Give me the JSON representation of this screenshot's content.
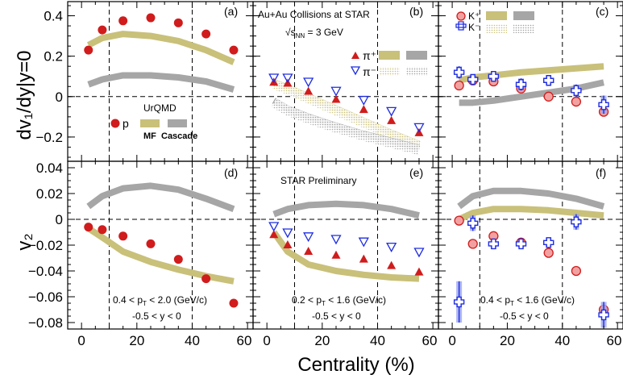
{
  "figure": {
    "xlabel": "Centrality (%)",
    "ylabel_top": "dv₁/dy|y=0",
    "ylabel_bottom": "v₂",
    "x_ticks": [
      "0",
      "20",
      "40",
      "60"
    ],
    "y_ticks_top": [
      "0.4",
      "0.2",
      "0",
      "−0.2"
    ],
    "y_ticks_bottom": [
      "0.04",
      "0.02",
      "0",
      "−0.02",
      "−0.04",
      "−0.06",
      "−0.08"
    ]
  },
  "panels_text": {
    "a_tag": "(a)",
    "b_tag": "(b)",
    "c_tag": "(c)",
    "d_tag": "(d)",
    "e_tag": "(e)",
    "f_tag": "(f)",
    "collision": "Au+Au Collisions at STAR",
    "energy_prefix": "√s",
    "energy_sub": "NN",
    "energy_suffix": " = 3 GeV",
    "urqmd": "UrQMD",
    "legend_p": "p",
    "legend_mf": "MF",
    "legend_cascade": "Cascade",
    "legend_piplus": "π⁺",
    "legend_piminus": "π⁻",
    "legend_kplus": "K⁺",
    "legend_kminus": "K⁻",
    "preliminary": "STAR Preliminary",
    "cut_d_1": "0.4 < p",
    "cut_d_1b": "T",
    "cut_d_1c": " < 2.0 (GeV/c)",
    "cut_d_2": "-0.5 < y < 0",
    "cut_e_1": "0.2 < p",
    "cut_e_1b": "T",
    "cut_e_1c": " < 1.6 (GeV/c)",
    "cut_e_2": "-0.5 < y < 0",
    "cut_f_1": "0.4 < p",
    "cut_f_1b": "T",
    "cut_f_1c": " < 1.6 (GeV/c)",
    "cut_f_2": "-0.5 < y < 0"
  },
  "colors": {
    "proton": "#d01c1c",
    "mf_band": "#c9c07a",
    "cascade_band": "#a6a6a6",
    "piminus": "#1f2de0",
    "kplus_fill": "#f2a1a1",
    "kminus": "#1f2de0"
  },
  "chart_data": [
    {
      "type": "scatter",
      "panel": "a",
      "xlim": [
        -5,
        62
      ],
      "ylim": [
        -0.32,
        0.47
      ],
      "series": [
        {
          "name": "p",
          "kind": "data",
          "marker": "filled-circle",
          "x": [
            2.5,
            7.5,
            15,
            25,
            35,
            45,
            55
          ],
          "y": [
            0.23,
            0.33,
            0.375,
            0.39,
            0.365,
            0.31,
            0.23
          ]
        },
        {
          "kind": "model-mf",
          "x": [
            2.5,
            7.5,
            15,
            25,
            35,
            45,
            55
          ],
          "y": [
            0.255,
            0.29,
            0.31,
            0.3,
            0.275,
            0.23,
            0.17
          ]
        },
        {
          "kind": "model-cascade",
          "x": [
            2.5,
            7.5,
            15,
            25,
            35,
            45,
            55
          ],
          "y": [
            0.06,
            0.085,
            0.105,
            0.105,
            0.095,
            0.075,
            0.035
          ]
        }
      ]
    },
    {
      "type": "scatter",
      "panel": "b",
      "xlim": [
        -5,
        62
      ],
      "ylim": [
        -0.32,
        0.47
      ],
      "series": [
        {
          "name": "π⁺",
          "kind": "data",
          "marker": "filled-triangle",
          "x": [
            2.5,
            7.5,
            15,
            25,
            35,
            45,
            55
          ],
          "y": [
            0.07,
            0.065,
            0.025,
            -0.015,
            -0.065,
            -0.12,
            -0.18
          ]
        },
        {
          "name": "π⁻",
          "kind": "data",
          "marker": "open-triangle-down",
          "x": [
            2.5,
            7.5,
            15,
            25,
            35,
            45,
            55
          ],
          "y": [
            0.095,
            0.095,
            0.075,
            0.03,
            -0.015,
            -0.07,
            -0.15
          ]
        },
        {
          "kind": "model-mf",
          "x": [
            2.5,
            7.5,
            15,
            25,
            35,
            45,
            55
          ],
          "y": [
            0.07,
            0.045,
            0.0,
            -0.06,
            -0.12,
            -0.18,
            -0.235
          ]
        },
        {
          "kind": "model-mf-hatched",
          "x": [
            2.5,
            7.5,
            15,
            25,
            35,
            45,
            55
          ],
          "y": [
            0.06,
            0.035,
            -0.01,
            -0.07,
            -0.13,
            -0.19,
            -0.245
          ]
        },
        {
          "kind": "model-cascade",
          "x": [
            2.5,
            7.5,
            15,
            25,
            35,
            45,
            55
          ],
          "y": [
            -0.02,
            -0.06,
            -0.1,
            -0.145,
            -0.185,
            -0.22,
            -0.255
          ]
        },
        {
          "kind": "model-cascade-hatched",
          "x": [
            2.5,
            7.5,
            15,
            25,
            35,
            45,
            55
          ],
          "y": [
            -0.03,
            -0.07,
            -0.11,
            -0.155,
            -0.195,
            -0.23,
            -0.265
          ]
        }
      ]
    },
    {
      "type": "scatter",
      "panel": "c",
      "xlim": [
        -5,
        62
      ],
      "ylim": [
        -0.32,
        0.47
      ],
      "series": [
        {
          "name": "K⁺",
          "kind": "data",
          "marker": "open-circle",
          "x": [
            2.5,
            7.5,
            15,
            25,
            35,
            45,
            55
          ],
          "y": [
            0.055,
            0.08,
            0.075,
            0.04,
            0.0,
            -0.025,
            -0.075
          ]
        },
        {
          "name": "K⁻",
          "kind": "data",
          "marker": "open-cross",
          "x": [
            2.5,
            7.5,
            15,
            25,
            35,
            45,
            55
          ],
          "y": [
            0.12,
            0.085,
            0.1,
            0.06,
            0.08,
            0.03,
            -0.04
          ],
          "yerr": [
            0.03,
            0.025,
            0.025,
            0.03,
            0.025,
            0.03,
            0.045
          ]
        },
        {
          "kind": "model-mf",
          "x": [
            2.5,
            7.5,
            15,
            25,
            35,
            45,
            55
          ],
          "y": [
            0.08,
            0.095,
            0.105,
            0.12,
            0.13,
            0.14,
            0.15
          ]
        },
        {
          "kind": "model-cascade",
          "x": [
            2.5,
            7.5,
            15,
            25,
            35,
            45,
            55
          ],
          "y": [
            -0.03,
            -0.03,
            -0.02,
            0.0,
            0.02,
            0.04,
            0.07
          ]
        }
      ]
    },
    {
      "type": "scatter",
      "panel": "d",
      "xlim": [
        -5,
        62
      ],
      "ylim": [
        -0.085,
        0.045
      ],
      "series": [
        {
          "name": "p",
          "kind": "data",
          "marker": "filled-circle",
          "x": [
            2.5,
            7.5,
            15,
            25,
            35,
            45,
            55
          ],
          "y": [
            -0.006,
            -0.008,
            -0.013,
            -0.019,
            -0.031,
            -0.046,
            -0.065
          ]
        },
        {
          "kind": "model-mf",
          "x": [
            2.5,
            7.5,
            15,
            25,
            35,
            45,
            55
          ],
          "y": [
            -0.007,
            -0.014,
            -0.025,
            -0.033,
            -0.039,
            -0.044,
            -0.048
          ]
        },
        {
          "kind": "model-cascade",
          "x": [
            2.5,
            7.5,
            15,
            25,
            35,
            45,
            55
          ],
          "y": [
            0.01,
            0.018,
            0.024,
            0.026,
            0.023,
            0.016,
            0.008
          ]
        }
      ]
    },
    {
      "type": "scatter",
      "panel": "e",
      "xlim": [
        -5,
        62
      ],
      "ylim": [
        -0.085,
        0.045
      ],
      "series": [
        {
          "name": "π⁺",
          "kind": "data",
          "marker": "filled-triangle",
          "x": [
            2.5,
            7.5,
            15,
            25,
            35,
            45,
            55
          ],
          "y": [
            -0.012,
            -0.02,
            -0.025,
            -0.028,
            -0.031,
            -0.036,
            -0.041
          ]
        },
        {
          "name": "π⁻",
          "kind": "data",
          "marker": "open-triangle-down",
          "x": [
            2.5,
            7.5,
            15,
            25,
            35,
            45,
            55
          ],
          "y": [
            -0.005,
            -0.01,
            -0.013,
            -0.015,
            -0.017,
            -0.021,
            -0.025
          ]
        },
        {
          "kind": "model-mf",
          "x": [
            2.5,
            7.5,
            15,
            25,
            35,
            45,
            55
          ],
          "y": [
            -0.01,
            -0.025,
            -0.035,
            -0.04,
            -0.043,
            -0.045,
            -0.046
          ]
        },
        {
          "kind": "model-cascade",
          "x": [
            2.5,
            7.5,
            15,
            25,
            35,
            45,
            55
          ],
          "y": [
            0.004,
            0.008,
            0.011,
            0.012,
            0.011,
            0.008,
            0.003
          ]
        }
      ]
    },
    {
      "type": "scatter",
      "panel": "f",
      "xlim": [
        -5,
        62
      ],
      "ylim": [
        -0.085,
        0.045
      ],
      "series": [
        {
          "name": "K⁺",
          "kind": "data",
          "marker": "open-circle",
          "x": [
            2.5,
            7.5,
            15,
            25,
            35,
            45,
            55
          ],
          "y": [
            -0.001,
            -0.019,
            -0.013,
            -0.018,
            -0.026,
            -0.04,
            -0.07
          ]
        },
        {
          "name": "K⁻",
          "kind": "data",
          "marker": "open-cross",
          "x": [
            2.5,
            7.5,
            15,
            25,
            35,
            45,
            55
          ],
          "y": [
            -0.064,
            -0.003,
            -0.019,
            -0.019,
            -0.018,
            -0.002,
            -0.074
          ],
          "yerr": [
            0.016,
            0.006,
            0.004,
            0.003,
            0.004,
            0.006,
            0.01
          ]
        },
        {
          "kind": "model-mf",
          "x": [
            2.5,
            7.5,
            15,
            25,
            35,
            45,
            55
          ],
          "y": [
            0.0,
            0.005,
            0.008,
            0.008,
            0.007,
            0.005,
            0.003
          ]
        },
        {
          "kind": "model-cascade",
          "x": [
            2.5,
            7.5,
            15,
            25,
            35,
            45,
            55
          ],
          "y": [
            0.01,
            0.018,
            0.022,
            0.022,
            0.02,
            0.016,
            0.01
          ]
        }
      ]
    }
  ]
}
